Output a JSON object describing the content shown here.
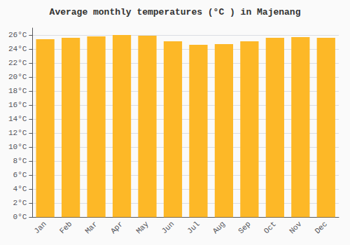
{
  "chart_data": {
    "type": "bar",
    "title": "Average monthly temperatures (°C ) in Majenang",
    "categories": [
      "Jan",
      "Feb",
      "Mar",
      "Apr",
      "May",
      "Jun",
      "Jul",
      "Aug",
      "Sep",
      "Oct",
      "Nov",
      "Dec"
    ],
    "values": [
      25.4,
      25.6,
      25.8,
      26.0,
      25.9,
      25.1,
      24.6,
      24.7,
      25.1,
      25.6,
      25.7,
      25.6
    ],
    "color": "#FDB827",
    "ylim": [
      0,
      27
    ],
    "yticks": [
      {
        "value": 0,
        "label": "0°C"
      },
      {
        "value": 2,
        "label": "2°C"
      },
      {
        "value": 4,
        "label": "4°C"
      },
      {
        "value": 6,
        "label": "6°C"
      },
      {
        "value": 8,
        "label": "8°C"
      },
      {
        "value": 10,
        "label": "10°C"
      },
      {
        "value": 12,
        "label": "12°C"
      },
      {
        "value": 14,
        "label": "14°C"
      },
      {
        "value": 16,
        "label": "16°C"
      },
      {
        "value": 18,
        "label": "18°C"
      },
      {
        "value": 20,
        "label": "20°C"
      },
      {
        "value": 22,
        "label": "22°C"
      },
      {
        "value": 24,
        "label": "24°C"
      },
      {
        "value": 26,
        "label": "26°C"
      }
    ],
    "grid": true
  }
}
